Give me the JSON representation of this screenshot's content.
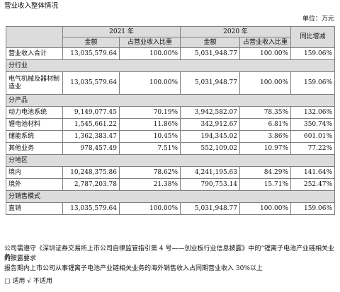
{
  "page_title": "营业收入整体情况",
  "unit": "单位：万元",
  "header": {
    "year_2021": "2021 年",
    "year_2020": "2020 年",
    "yoy": "同比增减",
    "amount": "金额",
    "share": "占营业收入比重"
  },
  "total": {
    "label": "营业收入合计",
    "a21": "13,035,579.64",
    "p21": "100.00%",
    "a20": "5,031,948.77",
    "p20": "100.00%",
    "yoy": "159.06%"
  },
  "sections": [
    {
      "title": "分行业",
      "rows": [
        {
          "label": "电气机械及器材制造业",
          "a21": "13,035,579.64",
          "p21": "100.00%",
          "a20": "5,031,948.77",
          "p20": "100.00%",
          "yoy": "159.06%"
        }
      ]
    },
    {
      "title": "分产品",
      "rows": [
        {
          "label": "动力电池系统",
          "a21": "9,149,077.45",
          "p21": "70.19%",
          "a20": "3,942,582.07",
          "p20": "78.35%",
          "yoy": "132.06%"
        },
        {
          "label": "锂电池材料",
          "a21": "1,545,661.22",
          "p21": "11.86%",
          "a20": "342,912.67",
          "p20": "6.81%",
          "yoy": "350.74%"
        },
        {
          "label": "储能系统",
          "a21": "1,362,383.47",
          "p21": "10.45%",
          "a20": "194,345.02",
          "p20": "3.86%",
          "yoy": "601.01%"
        },
        {
          "label": "其他业务",
          "a21": "978,457.49",
          "p21": "7.51%",
          "a20": "552,109.02",
          "p20": "10.97%",
          "yoy": "77.22%"
        }
      ]
    },
    {
      "title": "分地区",
      "rows": [
        {
          "label": "境内",
          "a21": "10,248,375.86",
          "p21": "78.62%",
          "a20": "4,241,195.63",
          "p20": "84.29%",
          "yoy": "141.64%"
        },
        {
          "label": "境外",
          "a21": "2,787,203.78",
          "p21": "21.38%",
          "a20": "790,753.14",
          "p20": "15.71%",
          "yoy": "252.47%"
        }
      ]
    },
    {
      "title": "分销售模式",
      "rows": [
        {
          "label": "直销",
          "a21": "13,035,579.64",
          "p21": "100.00%",
          "a20": "5,031,948.77",
          "p20": "100.00%",
          "yoy": "159.06%"
        }
      ]
    }
  ],
  "footnotes": {
    "line1": "公司需遵守《深圳证券交易所上市公司自律监管指引第 4 号——创业板行业信息披露》中的“锂离子电池产业链相关业务”",
    "line2": "的披露要求",
    "line3": "报告期内上市公司从事锂离子电池产业链相关业务的海外销售收入占同期营业收入 30%以上",
    "line4": "□ 适用 √ 不适用"
  }
}
